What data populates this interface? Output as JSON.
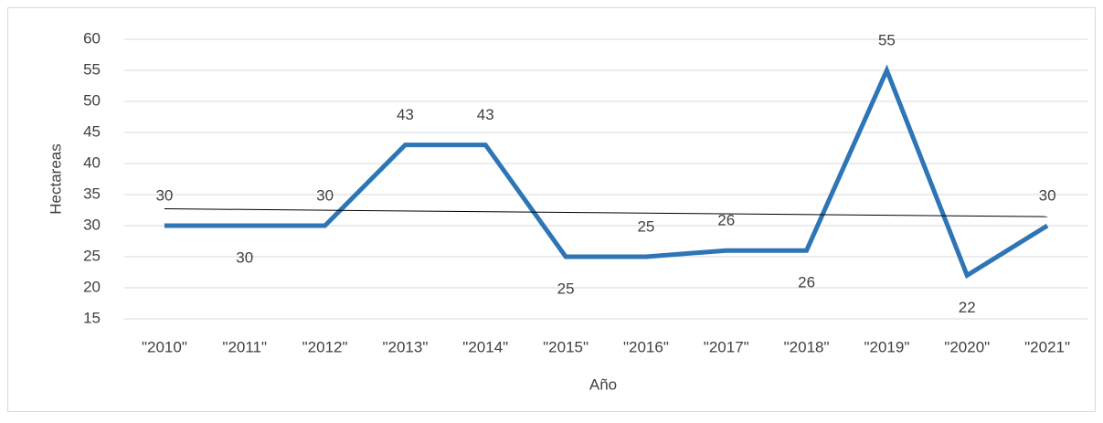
{
  "chart_data": {
    "type": "line",
    "x_label": "Año",
    "y_label": "Hectareas",
    "categories": [
      "\"2010\"",
      "\"2011\"",
      "\"2012\"",
      "\"2013\"",
      "\"2014\"",
      "\"2015\"",
      "\"2016\"",
      "\"2017\"",
      "\"2018\"",
      "\"2019\"",
      "\"2020\"",
      "\"2021\""
    ],
    "series": [
      {
        "color": "#2e75b6",
        "values": [
          30,
          30,
          30,
          43,
          43,
          25,
          25,
          26,
          26,
          55,
          22,
          30
        ]
      }
    ],
    "ylim": [
      15,
      60
    ],
    "yticks": [
      15,
      20,
      25,
      30,
      35,
      40,
      45,
      50,
      55,
      60
    ],
    "grid": true,
    "trendline": true
  }
}
